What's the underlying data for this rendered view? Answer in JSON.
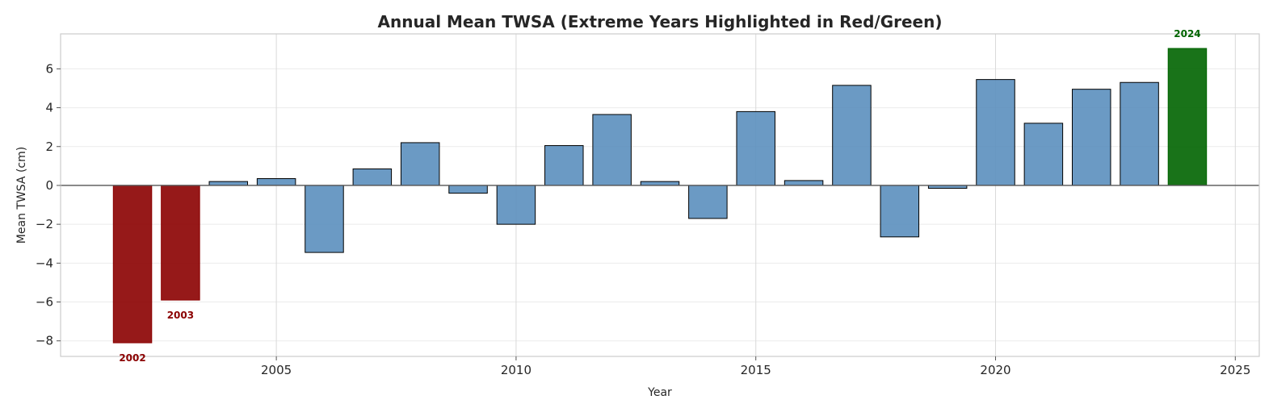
{
  "chart_data": {
    "type": "bar",
    "title": "Annual Mean TWSA (Extreme Years Highlighted in Red/Green)",
    "xlabel": "Year",
    "ylabel": "Mean TWSA (cm)",
    "xlim": [
      2000.5,
      2025.5
    ],
    "ylim": [
      -8.8,
      7.8
    ],
    "x_ticks": [
      2005,
      2010,
      2015,
      2020,
      2025
    ],
    "y_ticks": [
      -8,
      -6,
      -4,
      -2,
      0,
      2,
      4,
      6
    ],
    "grid": true,
    "legend": "none",
    "colors": {
      "normal": "#5b8fbe",
      "dry_extreme": "#8b0000",
      "wet_extreme": "#006400"
    },
    "bars": [
      {
        "year": 2002,
        "value": -8.1,
        "category": "dry_extreme",
        "label": "2002"
      },
      {
        "year": 2003,
        "value": -5.9,
        "category": "dry_extreme",
        "label": "2003"
      },
      {
        "year": 2004,
        "value": 0.2,
        "category": "normal"
      },
      {
        "year": 2005,
        "value": 0.35,
        "category": "normal"
      },
      {
        "year": 2006,
        "value": -3.45,
        "category": "normal"
      },
      {
        "year": 2007,
        "value": 0.85,
        "category": "normal"
      },
      {
        "year": 2008,
        "value": 2.2,
        "category": "normal"
      },
      {
        "year": 2009,
        "value": -0.4,
        "category": "normal"
      },
      {
        "year": 2010,
        "value": -2.0,
        "category": "normal"
      },
      {
        "year": 2011,
        "value": 2.05,
        "category": "normal"
      },
      {
        "year": 2012,
        "value": 3.65,
        "category": "normal"
      },
      {
        "year": 2013,
        "value": 0.2,
        "category": "normal"
      },
      {
        "year": 2014,
        "value": -1.7,
        "category": "normal"
      },
      {
        "year": 2015,
        "value": 3.8,
        "category": "normal"
      },
      {
        "year": 2016,
        "value": 0.25,
        "category": "normal"
      },
      {
        "year": 2017,
        "value": 5.15,
        "category": "normal"
      },
      {
        "year": 2018,
        "value": -2.65,
        "category": "normal"
      },
      {
        "year": 2019,
        "value": -0.15,
        "category": "normal"
      },
      {
        "year": 2020,
        "value": 5.45,
        "category": "normal"
      },
      {
        "year": 2021,
        "value": 3.2,
        "category": "normal"
      },
      {
        "year": 2022,
        "value": 4.95,
        "category": "normal"
      },
      {
        "year": 2023,
        "value": 5.3,
        "category": "normal"
      },
      {
        "year": 2024,
        "value": 7.05,
        "category": "wet_extreme",
        "label": "2024"
      }
    ]
  }
}
